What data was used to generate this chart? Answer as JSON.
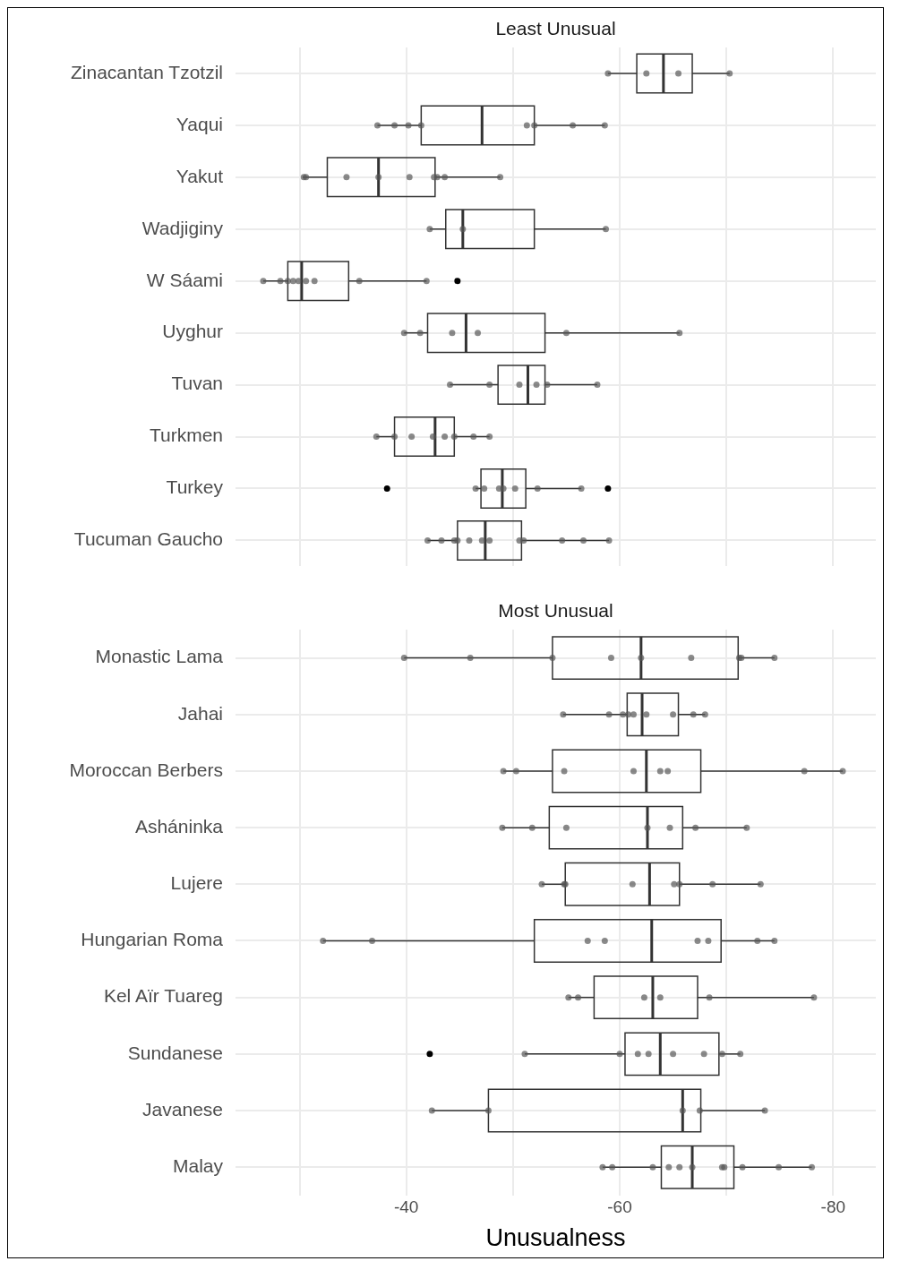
{
  "chart_data": [
    {
      "type": "box",
      "title": "Least Unusual",
      "orientation": "horizontal",
      "grid": true,
      "tick_labels": "y",
      "marker": "circle",
      "legend": false,
      "categories": [
        "Zinacantan Tzotzil",
        "Yaqui",
        "Yakut",
        "Wadjiginy",
        "W Sáami",
        "Uyghur",
        "Tuvan",
        "Turkmen",
        "Turkey",
        "Tucuman Gaucho"
      ],
      "xlim": [
        -24,
        -84
      ],
      "xticks": [
        {
          "value": -30,
          "label": null
        },
        -40,
        {
          "value": -50,
          "label": null
        },
        -60,
        {
          "value": -70,
          "label": null
        },
        -80
      ],
      "series": [
        {
          "color": "#333333",
          "boxes": [
            {
              "low": -58.9,
              "q1": -61.6,
              "median": -64.1,
              "q3": -66.8,
              "high": -70.3
            },
            {
              "low": -37.3,
              "q1": -41.4,
              "median": -47.1,
              "q3": -52.0,
              "high": -58.6
            },
            {
              "low": -30.3,
              "q1": -32.6,
              "median": -37.4,
              "q3": -42.7,
              "high": -48.8
            },
            {
              "low": -42.2,
              "q1": -43.7,
              "median": -45.3,
              "q3": -52.0,
              "high": -58.7
            },
            {
              "low": -26.6,
              "q1": -28.9,
              "median": -30.2,
              "q3": -34.6,
              "high": -41.9,
              "outliers": [
                -44.8
              ]
            },
            {
              "low": -39.8,
              "q1": -42.0,
              "median": -45.6,
              "q3": -53.0,
              "high": -65.6
            },
            {
              "low": -44.1,
              "q1": -48.6,
              "median": -51.4,
              "q3": -53.0,
              "high": -57.9
            },
            {
              "low": -37.2,
              "q1": -38.9,
              "median": -42.7,
              "q3": -44.5,
              "high": -47.8
            },
            {
              "low": -46.5,
              "q1": -47.0,
              "median": -49.0,
              "q3": -51.2,
              "high": -56.4,
              "outliers": [
                -38.2,
                -58.9
              ]
            },
            {
              "low": -42.0,
              "q1": -44.8,
              "median": -47.4,
              "q3": -50.8,
              "high": -59.0
            }
          ]
        },
        {
          "type": "scatter",
          "color": "#555555",
          "x": [
            "Zinacantan Tzotzil",
            "Zinacantan Tzotzil",
            "Zinacantan Tzotzil",
            "Zinacantan Tzotzil",
            "Yaqui",
            "Yaqui",
            "Yaqui",
            "Yaqui",
            "Yaqui",
            "Yaqui",
            "Yaqui",
            "Yaqui",
            "Yakut",
            "Yakut",
            "Yakut",
            "Yakut",
            "Yakut",
            "Yakut",
            "Yakut",
            "Yakut",
            "Yakut",
            "Wadjiginy",
            "Wadjiginy",
            "Wadjiginy",
            "W Sáami",
            "W Sáami",
            "W Sáami",
            "W Sáami",
            "W Sáami",
            "W Sáami",
            "W Sáami",
            "W Sáami",
            "W Sáami",
            "Uyghur",
            "Uyghur",
            "Uyghur",
            "Uyghur",
            "Uyghur",
            "Uyghur",
            "Tuvan",
            "Tuvan",
            "Tuvan",
            "Tuvan",
            "Tuvan",
            "Tuvan",
            "Turkmen",
            "Turkmen",
            "Turkmen",
            "Turkmen",
            "Turkmen",
            "Turkmen",
            "Turkmen",
            "Turkmen",
            "Turkey",
            "Turkey",
            "Turkey",
            "Turkey",
            "Turkey",
            "Turkey",
            "Turkey",
            "Tucuman Gaucho",
            "Tucuman Gaucho",
            "Tucuman Gaucho",
            "Tucuman Gaucho",
            "Tucuman Gaucho",
            "Tucuman Gaucho",
            "Tucuman Gaucho",
            "Tucuman Gaucho",
            "Tucuman Gaucho",
            "Tucuman Gaucho",
            "Tucuman Gaucho",
            "Tucuman Gaucho"
          ],
          "values": [
            -58.9,
            -62.5,
            -65.5,
            -70.3,
            -37.3,
            -38.9,
            -40.2,
            -41.4,
            -51.3,
            -52.0,
            -55.6,
            -58.6,
            -30.4,
            -30.6,
            -34.4,
            -37.4,
            -40.3,
            -42.6,
            -42.9,
            -43.6,
            -48.8,
            -42.2,
            -45.3,
            -58.7,
            -26.6,
            -28.2,
            -28.9,
            -29.4,
            -29.9,
            -30.6,
            -31.4,
            -35.6,
            -41.9,
            -39.8,
            -41.3,
            -44.3,
            -46.7,
            -55.0,
            -65.6,
            -44.1,
            -47.8,
            -50.6,
            -52.2,
            -53.2,
            -57.9,
            -37.2,
            -38.9,
            -40.5,
            -42.5,
            -43.6,
            -44.5,
            -46.3,
            -47.8,
            -46.5,
            -47.3,
            -48.7,
            -49.1,
            -50.2,
            -52.3,
            -56.4,
            -42.0,
            -43.3,
            -44.5,
            -44.8,
            -45.9,
            -47.1,
            -47.8,
            -50.6,
            -51.0,
            -54.6,
            -56.6,
            -59.0
          ]
        }
      ]
    },
    {
      "type": "box",
      "title": "Most Unusual",
      "xlabel": "Unusualness",
      "orientation": "horizontal",
      "grid": true,
      "marker": "circle",
      "legend": false,
      "categories": [
        "Monastic Lama",
        "Jahai",
        "Moroccan Berbers",
        "Asháninka",
        "Lujere",
        "Hungarian Roma",
        "Kel Aïr Tuareg",
        "Sundanese",
        "Javanese",
        "Malay"
      ],
      "xlim": [
        -24,
        -84
      ],
      "xticks": [
        {
          "value": -30,
          "label": null
        },
        -40,
        {
          "value": -50,
          "label": null
        },
        -60,
        {
          "value": -70,
          "label": null
        },
        -80
      ],
      "series": [
        {
          "color": "#333333",
          "boxes": [
            {
              "low": -39.8,
              "q1": -53.7,
              "median": -62.0,
              "q3": -71.1,
              "high": -74.5
            },
            {
              "low": -54.7,
              "q1": -60.7,
              "median": -62.1,
              "q3": -65.5,
              "high": -68.0
            },
            {
              "low": -49.1,
              "q1": -53.7,
              "median": -62.5,
              "q3": -67.6,
              "high": -80.9
            },
            {
              "low": -49.0,
              "q1": -53.4,
              "median": -62.6,
              "q3": -65.9,
              "high": -71.9
            },
            {
              "low": -52.7,
              "q1": -54.9,
              "median": -62.8,
              "q3": -65.6,
              "high": -73.2
            },
            {
              "low": -32.2,
              "q1": -52.0,
              "median": -63.0,
              "q3": -69.5,
              "high": -74.5
            },
            {
              "low": -55.2,
              "q1": -57.6,
              "median": -63.1,
              "q3": -67.3,
              "high": -78.2
            },
            {
              "low": -51.1,
              "q1": -60.5,
              "median": -63.8,
              "q3": -69.3,
              "high": -71.3,
              "outliers": [
                -42.2
              ]
            },
            {
              "low": -42.4,
              "q1": -47.7,
              "median": -65.9,
              "q3": -67.6,
              "high": -73.6
            },
            {
              "low": -58.4,
              "q1": -63.9,
              "median": -66.8,
              "q3": -70.7,
              "high": -78.0
            }
          ]
        },
        {
          "type": "scatter",
          "color": "#555555",
          "x": [
            "Monastic Lama",
            "Monastic Lama",
            "Monastic Lama",
            "Monastic Lama",
            "Monastic Lama",
            "Monastic Lama",
            "Monastic Lama",
            "Monastic Lama",
            "Monastic Lama",
            "Jahai",
            "Jahai",
            "Jahai",
            "Jahai",
            "Jahai",
            "Jahai",
            "Jahai",
            "Jahai",
            "Jahai",
            "Moroccan Berbers",
            "Moroccan Berbers",
            "Moroccan Berbers",
            "Moroccan Berbers",
            "Moroccan Berbers",
            "Moroccan Berbers",
            "Moroccan Berbers",
            "Moroccan Berbers",
            "Asháninka",
            "Asháninka",
            "Asháninka",
            "Asháninka",
            "Asháninka",
            "Asháninka",
            "Asháninka",
            "Lujere",
            "Lujere",
            "Lujere",
            "Lujere",
            "Lujere",
            "Lujere",
            "Lujere",
            "Lujere",
            "Hungarian Roma",
            "Hungarian Roma",
            "Hungarian Roma",
            "Hungarian Roma",
            "Hungarian Roma",
            "Hungarian Roma",
            "Hungarian Roma",
            "Hungarian Roma",
            "Kel Aïr Tuareg",
            "Kel Aïr Tuareg",
            "Kel Aïr Tuareg",
            "Kel Aïr Tuareg",
            "Kel Aïr Tuareg",
            "Kel Aïr Tuareg",
            "Sundanese",
            "Sundanese",
            "Sundanese",
            "Sundanese",
            "Sundanese",
            "Sundanese",
            "Sundanese",
            "Sundanese",
            "Javanese",
            "Javanese",
            "Javanese",
            "Javanese",
            "Javanese",
            "Malay",
            "Malay",
            "Malay",
            "Malay",
            "Malay",
            "Malay",
            "Malay",
            "Malay",
            "Malay",
            "Malay",
            "Malay"
          ],
          "values": [
            -39.8,
            -46.0,
            -53.7,
            -59.2,
            -62.0,
            -66.7,
            -71.2,
            -71.4,
            -74.5,
            -54.7,
            -59.0,
            -60.3,
            -60.8,
            -61.3,
            -62.5,
            -65.0,
            -66.9,
            -68.0,
            -49.1,
            -50.3,
            -54.8,
            -61.3,
            -63.8,
            -64.5,
            -77.3,
            -80.9,
            -49.0,
            -51.8,
            -55.0,
            -62.6,
            -64.7,
            -67.1,
            -71.9,
            -52.7,
            -54.8,
            -54.9,
            -61.2,
            -65.1,
            -65.6,
            -68.7,
            -73.2,
            -32.2,
            -36.8,
            -57.0,
            -58.6,
            -67.3,
            -68.3,
            -72.9,
            -74.5,
            -55.2,
            -56.1,
            -62.3,
            -63.8,
            -68.4,
            -78.2,
            -51.1,
            -60.0,
            -61.7,
            -62.7,
            -65.0,
            -67.9,
            -69.6,
            -71.3,
            -42.4,
            -47.7,
            -65.9,
            -67.5,
            -73.6,
            -58.4,
            -59.3,
            -63.1,
            -64.6,
            -65.6,
            -66.8,
            -69.6,
            -69.8,
            -71.5,
            -74.9,
            -78.0
          ]
        }
      ]
    }
  ]
}
